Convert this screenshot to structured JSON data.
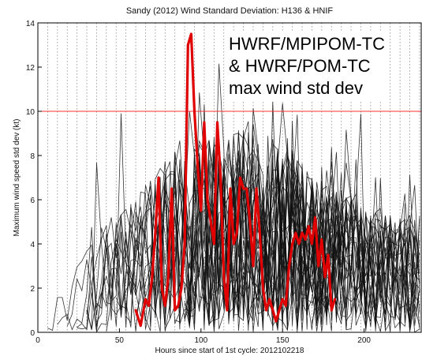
{
  "chart_data": {
    "type": "line",
    "title": "Sandy (2012) Wind Standard Deviation: H136 & HNIF",
    "xlabel": "Hours since start of 1st cycle: 2012102218",
    "ylabel": "Maximum wind speed std dev (kt)",
    "xlim": [
      0,
      235
    ],
    "ylim": [
      0,
      14
    ],
    "xticks": [
      0,
      50,
      100,
      150,
      200
    ],
    "yticks": [
      0,
      2,
      4,
      6,
      8,
      10,
      12,
      14
    ],
    "grid": "vertical dotted every 6 h",
    "reference_line": {
      "y": 10,
      "color": "#ff3030"
    },
    "annotation": [
      "HWRF/MPIPOM-TC",
      "& HWRF/POM-TC",
      "max wind std dev"
    ],
    "highlight_series": {
      "color": "#e00000",
      "x": [
        60,
        63,
        66,
        68,
        70,
        72,
        74,
        76,
        78,
        80,
        82,
        84,
        86,
        88,
        90,
        92,
        94,
        96,
        98,
        100,
        102,
        104,
        106,
        108,
        110,
        112,
        114,
        116,
        118,
        120,
        122,
        124,
        126,
        128,
        130,
        132,
        134,
        136,
        138,
        140,
        142,
        144,
        146,
        148,
        150,
        152,
        154,
        156,
        158,
        160,
        162,
        164,
        166,
        168,
        170,
        172,
        174,
        176,
        178,
        180,
        182
      ],
      "y": [
        1.0,
        0.3,
        1.5,
        1.2,
        2.5,
        4.5,
        7.0,
        2.0,
        1.2,
        2.5,
        6.5,
        1.0,
        1.2,
        2.0,
        4.0,
        13.0,
        13.5,
        10.0,
        7.5,
        5.5,
        9.5,
        6.0,
        5.0,
        4.0,
        9.5,
        7.0,
        2.5,
        1.0,
        6.5,
        4.0,
        4.5,
        7.0,
        6.5,
        6.5,
        5.0,
        3.0,
        6.5,
        4.5,
        2.0,
        1.0,
        1.5,
        1.0,
        0.5,
        1.0,
        1.5,
        1.2,
        3.0,
        4.0,
        4.5,
        4.0,
        4.5,
        4.2,
        4.8,
        4.0,
        5.2,
        3.0,
        4.2,
        2.5,
        3.5,
        1.0,
        1.5
      ]
    }
  }
}
